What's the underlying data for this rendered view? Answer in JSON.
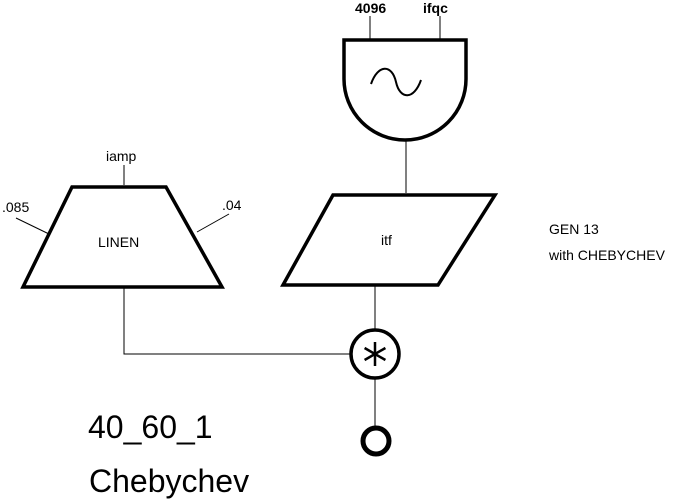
{
  "oscillator": {
    "input_left": "4096",
    "input_right": "ifqc"
  },
  "linen": {
    "label": "LINEN",
    "input_top": "iamp",
    "input_left": ".085",
    "input_right": ".04"
  },
  "table": {
    "label": "itf"
  },
  "note": {
    "line1": "GEN 13",
    "line2": "with CHEBYCHEV"
  },
  "title": {
    "line1": "40_60_1",
    "line2": "Chebychev"
  }
}
